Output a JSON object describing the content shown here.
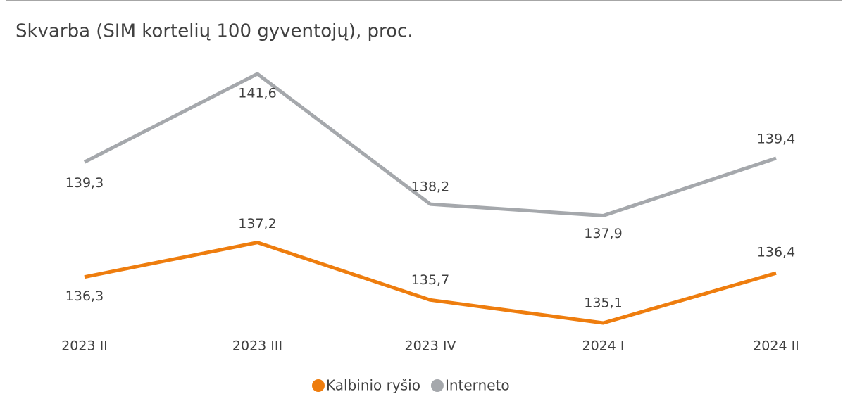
{
  "chart_data": {
    "type": "line",
    "title": "Skvarba (SIM kortelių 100 gyventojų), proc.",
    "categories": [
      "2023 II",
      "2023 III",
      "2023 IV",
      "2024 I",
      "2024 II"
    ],
    "series": [
      {
        "name": "Kalbinio ryšio",
        "color": "#ee7d0e",
        "values": [
          136.3,
          137.2,
          135.7,
          135.1,
          136.4
        ],
        "value_labels": [
          "136,3",
          "137,2",
          "135,7",
          "135,1",
          "136,4"
        ]
      },
      {
        "name": "Interneto",
        "color": "#a5a8ac",
        "values": [
          139.3,
          141.6,
          138.2,
          137.9,
          139.4
        ],
        "value_labels": [
          "139,3",
          "141,6",
          "138,2",
          "137,9",
          "139,4"
        ]
      }
    ],
    "legend": "bottom"
  }
}
